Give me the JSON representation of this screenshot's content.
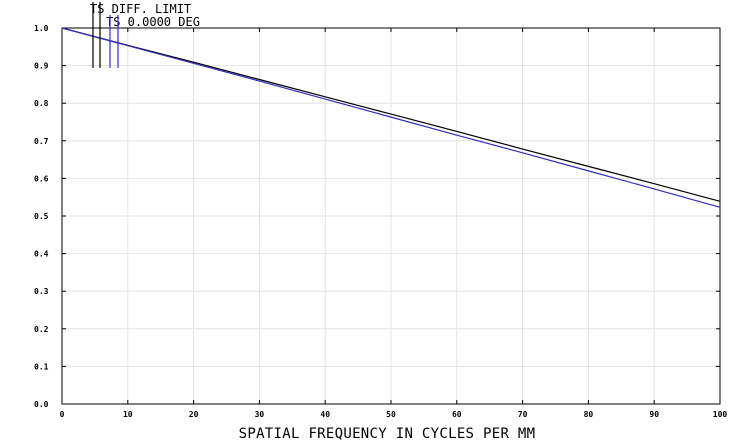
{
  "chart_data": {
    "type": "line",
    "title": "",
    "xlabel": "SPATIAL FREQUENCY IN CYCLES PER MM",
    "ylabel": "",
    "xlim": [
      0,
      100
    ],
    "ylim": [
      0,
      1
    ],
    "x_ticks": [
      0,
      10,
      20,
      30,
      40,
      50,
      60,
      70,
      80,
      90,
      100
    ],
    "x_tick_labels": [
      "0",
      "10",
      "20",
      "30",
      "40",
      "50",
      "60",
      "70",
      "80",
      "90",
      "100"
    ],
    "y_ticks": [
      0,
      0.1,
      0.2,
      0.3,
      0.4,
      0.5,
      0.6,
      0.7,
      0.8,
      0.9,
      1.0
    ],
    "y_tick_labels": [
      "0.0",
      "0.1",
      "0.2",
      "0.3",
      "0.4",
      "0.5",
      "0.6",
      "0.7",
      "0.8",
      "0.9",
      "1.0"
    ],
    "grid": true,
    "legend": [
      {
        "label": "TS DIFF. LIMIT",
        "color": "#000000"
      },
      {
        "label": "TS 0.0000 DEG",
        "color": "#2e2ebe"
      }
    ],
    "series": [
      {
        "name": "TS DIFF. LIMIT",
        "color": "#000000",
        "x": [
          0,
          10,
          20,
          30,
          40,
          50,
          60,
          70,
          80,
          90,
          100
        ],
        "y": [
          1.0,
          0.954,
          0.909,
          0.863,
          0.817,
          0.771,
          0.725,
          0.678,
          0.632,
          0.586,
          0.539
        ]
      },
      {
        "name": "TS 0.0000 DEG",
        "color": "#2e2ebe",
        "x": [
          0,
          10,
          20,
          30,
          40,
          50,
          60,
          70,
          80,
          90,
          100
        ],
        "y": [
          1.0,
          0.953,
          0.906,
          0.859,
          0.811,
          0.763,
          0.715,
          0.668,
          0.62,
          0.572,
          0.523
        ]
      }
    ]
  }
}
